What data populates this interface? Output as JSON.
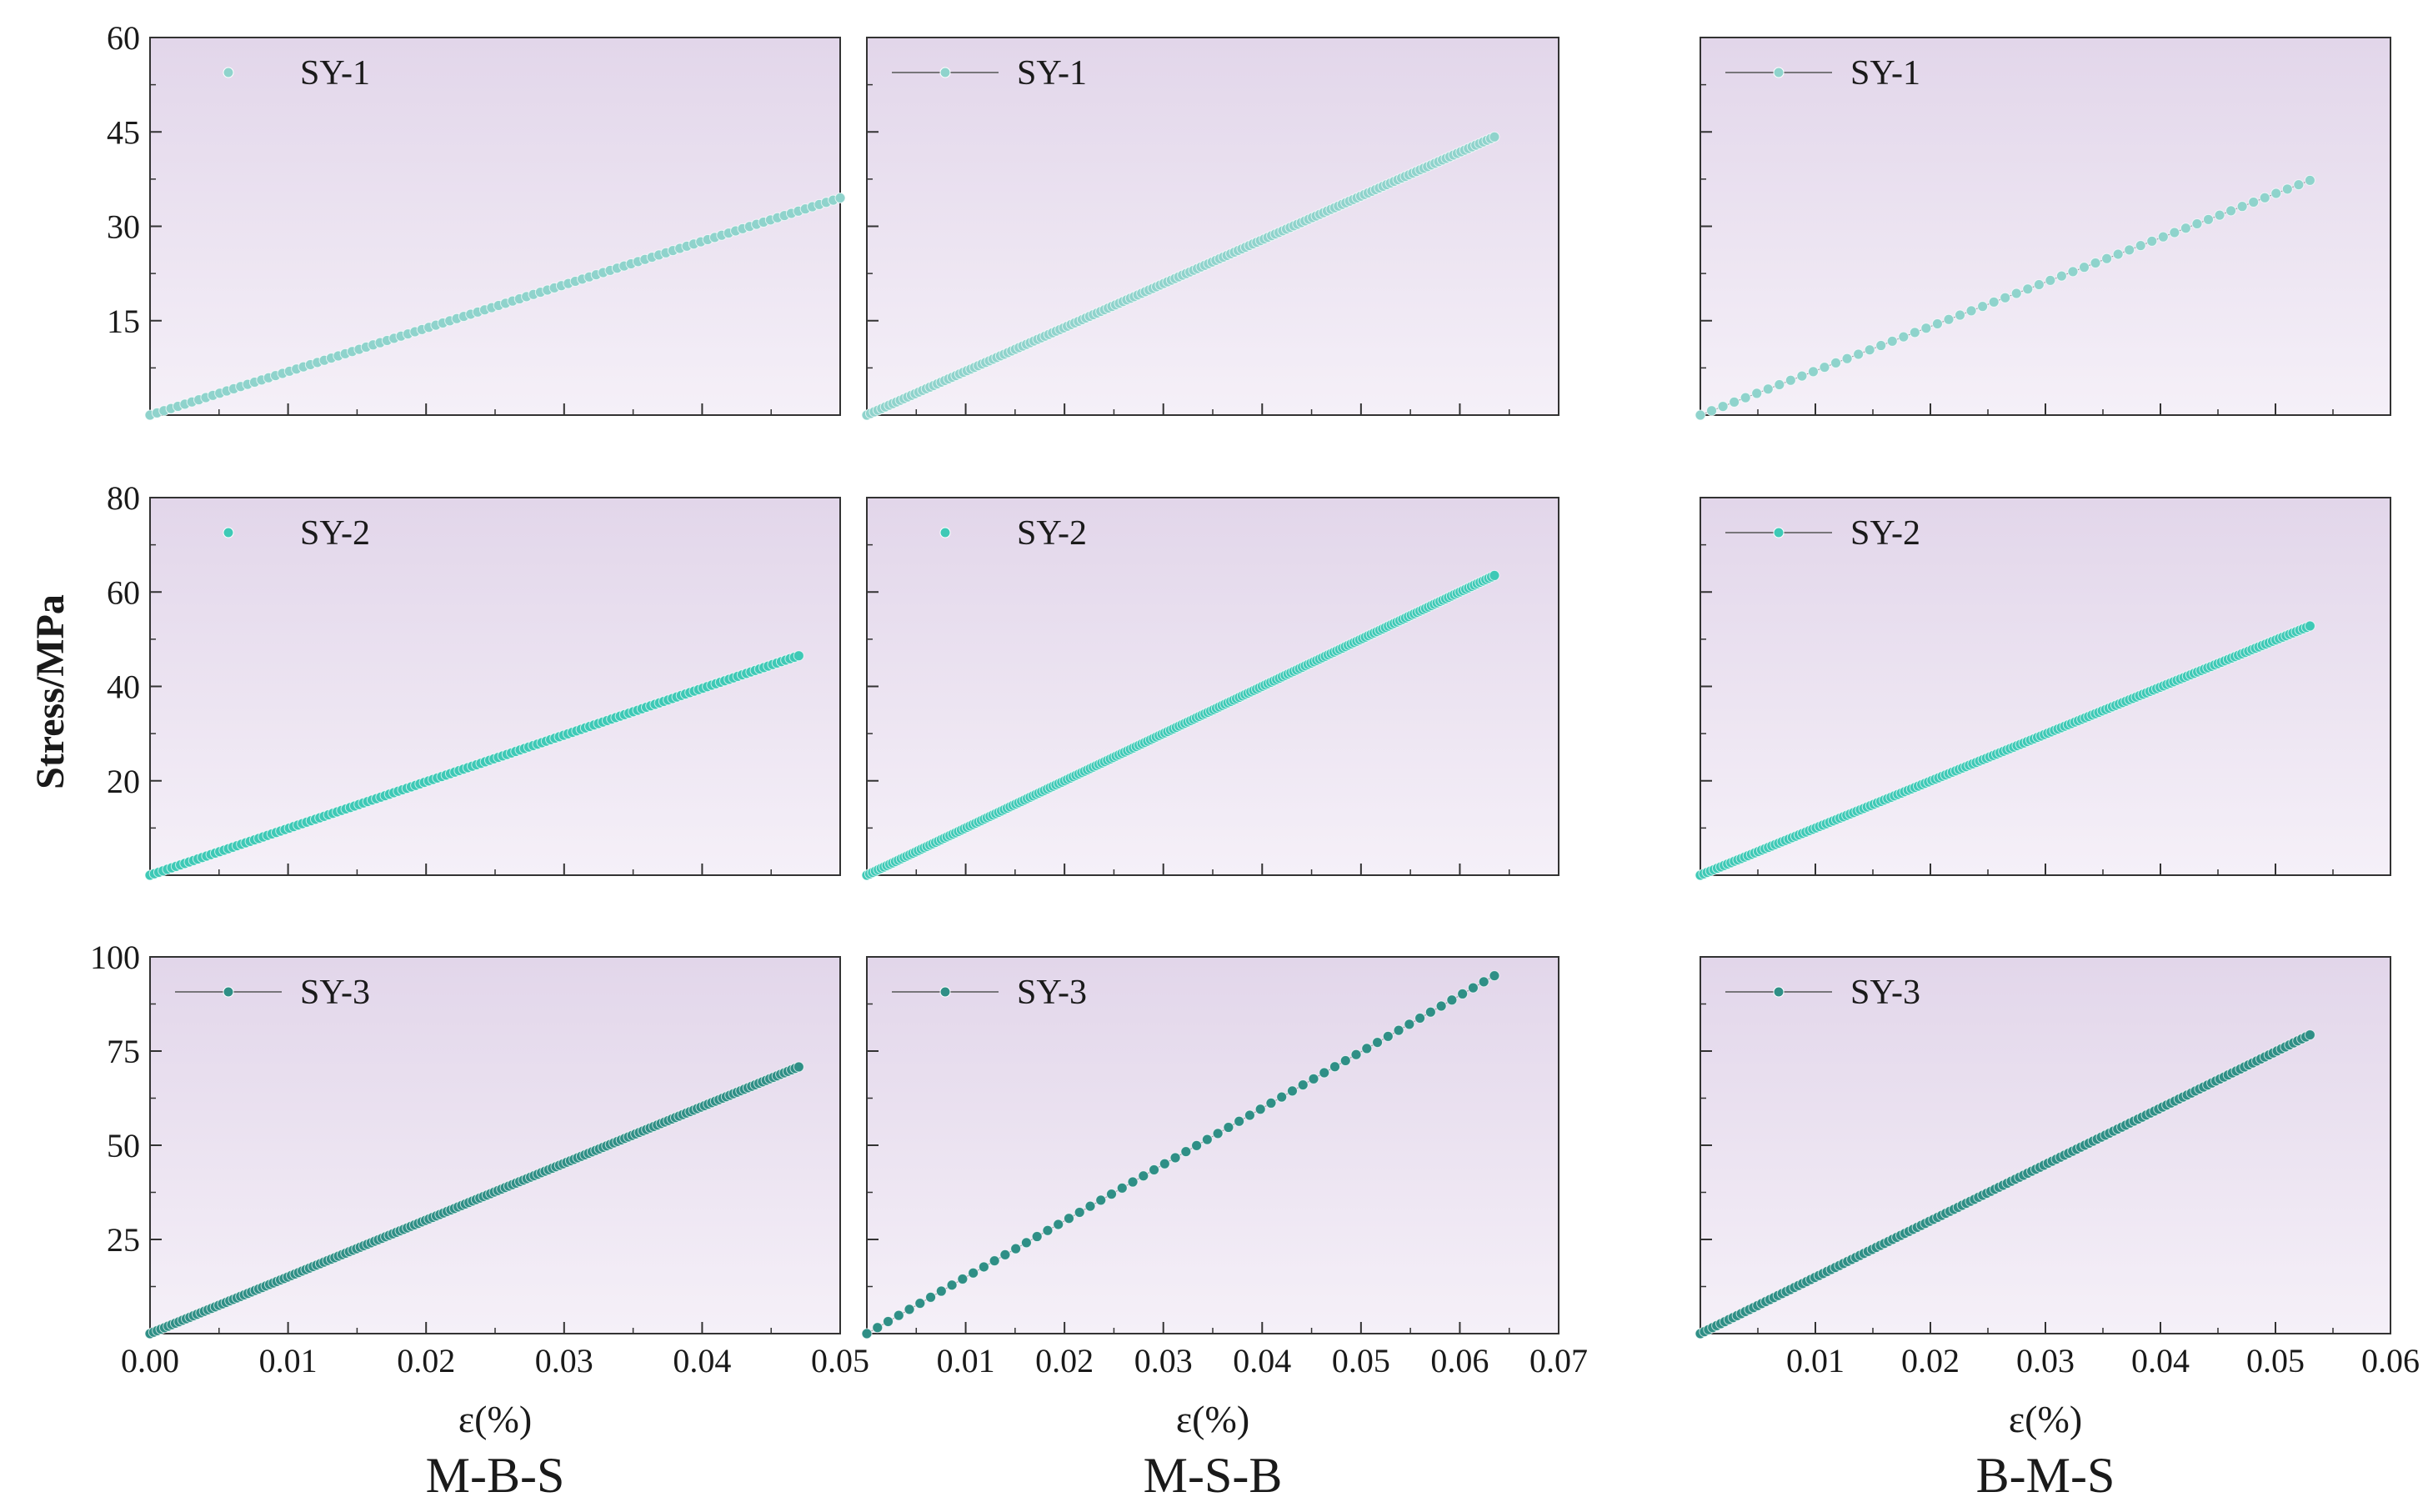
{
  "figure": {
    "ylabel": "Stress/MPa",
    "columns": [
      {
        "xlabel": "ε(%)",
        "title": "M-B-S",
        "xticks": [
          "0.00",
          "0.01",
          "0.02",
          "0.03",
          "0.04",
          "0.05"
        ],
        "xlim": [
          0.0,
          0.05
        ]
      },
      {
        "xlabel": "ε(%)",
        "title": "M-S-B",
        "xticks": [
          "0.01",
          "0.02",
          "0.03",
          "0.04",
          "0.05",
          "0.06",
          "0.07"
        ],
        "xlim": [
          0.0,
          0.07
        ]
      },
      {
        "xlabel": "ε(%)",
        "title": "B-M-S",
        "xticks": [
          "0.01",
          "0.02",
          "0.03",
          "0.04",
          "0.05",
          "0.06"
        ],
        "xlim": [
          0.0,
          0.06
        ]
      }
    ],
    "rows": [
      {
        "yticks": [
          "60",
          "45",
          "30",
          "15"
        ],
        "ylim": [
          0,
          60
        ],
        "color": "#8fd3cc"
      },
      {
        "yticks": [
          "80",
          "60",
          "40",
          "20"
        ],
        "ylim": [
          0,
          80
        ],
        "color": "#3ec9b6"
      },
      {
        "yticks": [
          "100",
          "75",
          "50",
          "25"
        ],
        "ylim": [
          0,
          100
        ],
        "color": "#2f8f86"
      }
    ],
    "colors": {
      "bg_top": "#e2d6ea",
      "bg_bottom": "#f5f0f8",
      "frame": "#333333"
    }
  },
  "chart_data": [
    {
      "type": "scatter",
      "row": 0,
      "col": 0,
      "series_name": "SY-1",
      "x_end": 0.05,
      "y_end": 34.5,
      "n_points": 100,
      "legend_line": false,
      "xlim": [
        0.0,
        0.05
      ],
      "ylim": [
        0,
        60
      ]
    },
    {
      "type": "line",
      "row": 0,
      "col": 1,
      "series_name": "SY-1",
      "x_end": 0.0635,
      "y_end": 44.2,
      "n_points": 170,
      "legend_line": true,
      "xlim": [
        0.0,
        0.07
      ],
      "ylim": [
        0,
        60
      ]
    },
    {
      "type": "line",
      "row": 0,
      "col": 2,
      "series_name": "SY-1",
      "x_end": 0.053,
      "y_end": 37.3,
      "n_points": 55,
      "legend_line": true,
      "xlim": [
        0.0,
        0.06
      ],
      "ylim": [
        0,
        60
      ]
    },
    {
      "type": "scatter",
      "row": 1,
      "col": 0,
      "series_name": "SY-2",
      "x_end": 0.047,
      "y_end": 46.5,
      "n_points": 150,
      "legend_line": false,
      "xlim": [
        0.0,
        0.05
      ],
      "ylim": [
        0,
        80
      ]
    },
    {
      "type": "scatter",
      "row": 1,
      "col": 1,
      "series_name": "SY-2",
      "x_end": 0.0635,
      "y_end": 63.5,
      "n_points": 220,
      "legend_line": false,
      "xlim": [
        0.0,
        0.07
      ],
      "ylim": [
        0,
        80
      ]
    },
    {
      "type": "line",
      "row": 1,
      "col": 2,
      "series_name": "SY-2",
      "x_end": 0.053,
      "y_end": 52.8,
      "n_points": 180,
      "legend_line": true,
      "xlim": [
        0.0,
        0.06
      ],
      "ylim": [
        0,
        80
      ]
    },
    {
      "type": "line",
      "row": 2,
      "col": 0,
      "series_name": "SY-3",
      "x_end": 0.047,
      "y_end": 70.8,
      "n_points": 180,
      "legend_line": true,
      "xlim": [
        0.0,
        0.05
      ],
      "ylim": [
        0,
        100
      ]
    },
    {
      "type": "line",
      "row": 2,
      "col": 1,
      "series_name": "SY-3",
      "x_end": 0.0635,
      "y_end": 95.0,
      "n_points": 60,
      "legend_line": true,
      "xlim": [
        0.0,
        0.07
      ],
      "ylim": [
        0,
        100
      ]
    },
    {
      "type": "line",
      "row": 2,
      "col": 2,
      "series_name": "SY-3",
      "x_end": 0.053,
      "y_end": 79.3,
      "n_points": 150,
      "legend_line": true,
      "xlim": [
        0.0,
        0.06
      ],
      "ylim": [
        0,
        100
      ]
    }
  ]
}
